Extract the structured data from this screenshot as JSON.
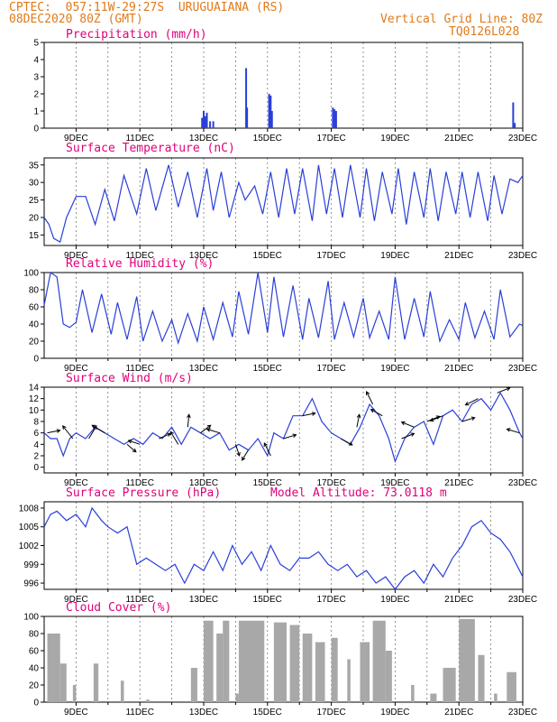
{
  "header": {
    "line1": "CPTEC:  057:11W-29:27S  URUGUAIANA (RS)",
    "line2": "08DEC2020 80Z (GMT)",
    "vertical_grid": "Vertical Grid Line: 80Z",
    "code": "TQ0126L028"
  },
  "colors": {
    "line": "#2a3fd8",
    "title": "#e0007a",
    "header": "#e07a1a",
    "cloud": "#a8a8a8"
  },
  "chart_data": [
    {
      "type": "bar",
      "title": "Precipitation (mm/h)",
      "ylim": [
        0,
        5
      ],
      "yticks": [
        0,
        1,
        2,
        3,
        4,
        5
      ],
      "xlim": [
        8,
        23
      ],
      "xticks": [
        "9DEC",
        "11DEC",
        "13DEC",
        "15DEC",
        "17DEC",
        "19DEC",
        "21DEC",
        "23DEC"
      ],
      "x": [
        12.95,
        13.0,
        13.05,
        13.1,
        13.2,
        13.3,
        14.33,
        14.36,
        15.05,
        15.1,
        15.14,
        17.05,
        17.1,
        17.15,
        22.7,
        22.75
      ],
      "values": [
        0.6,
        1.0,
        0.7,
        0.9,
        0.4,
        0.4,
        3.5,
        1.2,
        2.0,
        1.9,
        1.0,
        1.2,
        1.1,
        1.0,
        1.5,
        0.3
      ]
    },
    {
      "type": "line",
      "title": "Surface Temperature (nC)",
      "ylim": [
        12,
        37
      ],
      "yticks": [
        15,
        20,
        25,
        30,
        35
      ],
      "xlim": [
        8,
        23
      ],
      "xticks": [
        "9DEC",
        "11DEC",
        "13DEC",
        "15DEC",
        "17DEC",
        "19DEC",
        "21DEC",
        "23DEC"
      ],
      "x": [
        8.0,
        8.15,
        8.3,
        8.5,
        8.7,
        9.0,
        9.3,
        9.6,
        9.9,
        10.2,
        10.5,
        10.9,
        11.2,
        11.5,
        11.9,
        12.2,
        12.5,
        12.8,
        13.1,
        13.3,
        13.55,
        13.8,
        14.1,
        14.3,
        14.6,
        14.85,
        15.1,
        15.35,
        15.6,
        15.85,
        16.1,
        16.4,
        16.6,
        16.85,
        17.1,
        17.35,
        17.6,
        17.9,
        18.1,
        18.35,
        18.6,
        18.9,
        19.1,
        19.35,
        19.6,
        19.9,
        20.1,
        20.35,
        20.6,
        20.9,
        21.1,
        21.35,
        21.6,
        21.9,
        22.1,
        22.35,
        22.6,
        22.85,
        23.0
      ],
      "values": [
        20,
        18,
        14,
        13,
        20,
        26,
        26,
        18,
        28,
        19,
        32,
        21,
        34,
        22,
        35,
        23,
        33,
        20,
        34,
        22,
        33,
        20,
        30,
        25,
        29,
        21,
        33,
        20,
        34,
        21,
        34,
        19,
        35,
        21,
        34,
        20,
        35,
        20,
        34,
        19,
        33,
        21,
        34,
        18,
        33,
        20,
        34,
        19,
        33,
        21,
        33,
        20,
        33,
        19,
        32,
        21,
        31,
        30,
        32
      ]
    },
    {
      "type": "line",
      "title": "Relative Humidity (%)",
      "ylim": [
        0,
        100
      ],
      "yticks": [
        0,
        20,
        40,
        60,
        80,
        100
      ],
      "xlim": [
        8,
        23
      ],
      "xticks": [
        "9DEC",
        "11DEC",
        "13DEC",
        "15DEC",
        "17DEC",
        "19DEC",
        "21DEC",
        "23DEC"
      ],
      "x": [
        8.0,
        8.2,
        8.4,
        8.6,
        8.8,
        9.0,
        9.2,
        9.5,
        9.8,
        10.1,
        10.3,
        10.6,
        10.9,
        11.1,
        11.4,
        11.7,
        12.0,
        12.2,
        12.5,
        12.8,
        13.0,
        13.3,
        13.6,
        13.9,
        14.1,
        14.4,
        14.7,
        15.0,
        15.2,
        15.5,
        15.8,
        16.1,
        16.3,
        16.6,
        16.9,
        17.1,
        17.4,
        17.7,
        18.0,
        18.2,
        18.5,
        18.8,
        19.0,
        19.3,
        19.6,
        19.9,
        20.1,
        20.4,
        20.7,
        21.0,
        21.2,
        21.5,
        21.8,
        22.1,
        22.3,
        22.6,
        22.9,
        23.0
      ],
      "values": [
        62,
        100,
        95,
        40,
        36,
        42,
        80,
        30,
        75,
        28,
        65,
        22,
        72,
        20,
        55,
        20,
        45,
        18,
        52,
        20,
        60,
        22,
        65,
        25,
        78,
        28,
        100,
        30,
        95,
        25,
        85,
        22,
        70,
        24,
        90,
        22,
        65,
        25,
        70,
        24,
        55,
        22,
        95,
        22,
        70,
        25,
        78,
        20,
        45,
        22,
        65,
        24,
        55,
        22,
        80,
        25,
        40,
        38
      ]
    },
    {
      "type": "line",
      "title": "Surface Wind (m/s)",
      "ylim": [
        -1,
        14
      ],
      "yticks": [
        0,
        2,
        4,
        6,
        8,
        10,
        12,
        14
      ],
      "xlim": [
        8,
        23
      ],
      "xticks": [
        "9DEC",
        "11DEC",
        "13DEC",
        "15DEC",
        "17DEC",
        "19DEC",
        "21DEC",
        "23DEC"
      ],
      "x": [
        8.0,
        8.2,
        8.4,
        8.6,
        8.8,
        9.0,
        9.3,
        9.6,
        9.9,
        10.2,
        10.5,
        10.8,
        11.1,
        11.4,
        11.7,
        12.0,
        12.3,
        12.6,
        12.9,
        13.2,
        13.5,
        13.8,
        14.1,
        14.4,
        14.7,
        15.0,
        15.2,
        15.5,
        15.8,
        16.1,
        16.4,
        16.7,
        17.0,
        17.3,
        17.6,
        17.9,
        18.2,
        18.5,
        18.8,
        19.0,
        19.3,
        19.6,
        19.9,
        20.2,
        20.5,
        20.8,
        21.1,
        21.4,
        21.7,
        22.0,
        22.3,
        22.6,
        22.9,
        23.0
      ],
      "values": [
        6,
        5,
        5,
        2,
        5,
        6,
        5,
        7,
        6,
        5,
        4,
        5,
        4,
        6,
        5,
        7,
        4,
        7,
        6,
        5,
        6,
        3,
        4,
        3,
        5,
        2,
        6,
        5,
        9,
        9,
        12,
        8,
        6,
        5,
        4,
        7,
        11,
        9,
        5,
        1,
        5,
        7,
        8,
        4,
        9,
        10,
        8,
        11,
        12,
        10,
        13,
        10,
        6,
        5
      ],
      "vectors": [
        [
          8.1,
          1,
          0.2
        ],
        [
          8.9,
          -0.8,
          1
        ],
        [
          9.4,
          0.6,
          1
        ],
        [
          9.9,
          -1,
          0.6
        ],
        [
          10.6,
          0.7,
          -0.6
        ],
        [
          11.0,
          -0.9,
          0.3
        ],
        [
          11.6,
          0.9,
          0.4
        ],
        [
          12.2,
          -0.6,
          1
        ],
        [
          12.5,
          0.1,
          1
        ],
        [
          12.9,
          0.8,
          0.6
        ],
        [
          13.5,
          -1,
          0.3
        ],
        [
          14.0,
          0.3,
          -0.9
        ],
        [
          14.4,
          -0.5,
          -0.8
        ],
        [
          15.1,
          -0.5,
          1
        ],
        [
          15.5,
          1,
          0.3
        ],
        [
          16.1,
          1,
          0.2
        ],
        [
          17.3,
          0.9,
          -0.5
        ],
        [
          17.8,
          0.2,
          1
        ],
        [
          18.3,
          -0.5,
          1
        ],
        [
          18.6,
          -0.9,
          0.5
        ],
        [
          19.2,
          1,
          0.4
        ],
        [
          19.6,
          -1,
          0.4
        ],
        [
          20.0,
          1,
          0.4
        ],
        [
          20.5,
          -1,
          -0.4
        ],
        [
          21.1,
          1,
          0.3
        ],
        [
          21.6,
          -1,
          -0.5
        ],
        [
          22.2,
          1,
          0.4
        ],
        [
          22.9,
          -1,
          0.3
        ]
      ]
    },
    {
      "type": "line",
      "title": "Surface Pressure (hPa)",
      "annotation": "Model Altitude: 73.0118 m",
      "ylim": [
        995,
        1009
      ],
      "yticks": [
        996,
        999,
        1002,
        1005,
        1008
      ],
      "xlim": [
        8,
        23
      ],
      "xticks": [
        "9DEC",
        "11DEC",
        "13DEC",
        "15DEC",
        "17DEC",
        "19DEC",
        "21DEC",
        "23DEC"
      ],
      "x": [
        8.0,
        8.2,
        8.4,
        8.7,
        9.0,
        9.3,
        9.5,
        9.8,
        10.0,
        10.3,
        10.6,
        10.9,
        11.2,
        11.5,
        11.8,
        12.1,
        12.4,
        12.7,
        13.0,
        13.3,
        13.6,
        13.9,
        14.2,
        14.5,
        14.8,
        15.1,
        15.4,
        15.7,
        16.0,
        16.3,
        16.6,
        16.9,
        17.2,
        17.5,
        17.8,
        18.1,
        18.4,
        18.7,
        19.0,
        19.3,
        19.6,
        19.9,
        20.2,
        20.5,
        20.8,
        21.1,
        21.4,
        21.7,
        22.0,
        22.3,
        22.6,
        22.9,
        23.0
      ],
      "values": [
        1005,
        1007,
        1007.5,
        1006,
        1007,
        1005,
        1008,
        1006,
        1005,
        1004,
        1005,
        999,
        1000,
        999,
        998,
        999,
        996,
        999,
        998,
        1001,
        998,
        1002,
        999,
        1001,
        998,
        1002,
        999,
        998,
        1000,
        1000,
        1001,
        999,
        998,
        999,
        997,
        998,
        996,
        997,
        995,
        997,
        998,
        996,
        999,
        997,
        1000,
        1002,
        1005,
        1006,
        1004,
        1003,
        1001,
        998,
        997
      ]
    },
    {
      "type": "bar",
      "title": "Cloud Cover (%)",
      "ylim": [
        0,
        100
      ],
      "yticks": [
        0,
        20,
        40,
        60,
        80,
        100
      ],
      "xlim": [
        8,
        23
      ],
      "xticks": [
        "9DEC",
        "11DEC",
        "13DEC",
        "15DEC",
        "17DEC",
        "19DEC",
        "21DEC",
        "23DEC"
      ],
      "segments": [
        [
          8.1,
          8.5,
          80
        ],
        [
          8.5,
          8.7,
          45
        ],
        [
          8.9,
          9.0,
          20
        ],
        [
          9.55,
          9.7,
          45
        ],
        [
          10.4,
          10.5,
          25
        ],
        [
          11.2,
          11.3,
          3
        ],
        [
          12.6,
          12.8,
          40
        ],
        [
          13.0,
          13.3,
          95
        ],
        [
          13.4,
          13.6,
          80
        ],
        [
          13.6,
          13.8,
          95
        ],
        [
          14.0,
          14.1,
          10
        ],
        [
          14.1,
          14.9,
          95
        ],
        [
          15.2,
          15.6,
          93
        ],
        [
          15.7,
          16.0,
          90
        ],
        [
          16.1,
          16.4,
          80
        ],
        [
          16.5,
          16.8,
          70
        ],
        [
          17.0,
          17.2,
          75
        ],
        [
          17.5,
          17.6,
          50
        ],
        [
          17.9,
          18.2,
          70
        ],
        [
          18.3,
          18.7,
          95
        ],
        [
          18.7,
          18.9,
          60
        ],
        [
          19.5,
          19.6,
          20
        ],
        [
          20.1,
          20.3,
          10
        ],
        [
          20.5,
          20.9,
          40
        ],
        [
          21.0,
          21.5,
          97
        ],
        [
          21.6,
          21.8,
          55
        ],
        [
          22.1,
          22.2,
          10
        ],
        [
          22.5,
          22.8,
          35
        ]
      ]
    }
  ]
}
